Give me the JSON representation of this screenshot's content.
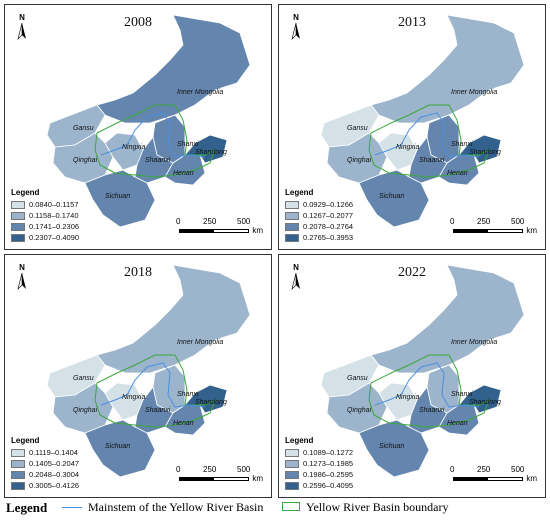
{
  "north_label": "N",
  "scale": {
    "ticks": [
      "0",
      "250",
      "500"
    ],
    "unit": "km"
  },
  "legend_title": "Legend",
  "colors": {
    "c1": "#d4e2e8",
    "c2": "#9cb4cc",
    "c3": "#6486ae",
    "c4": "#33618d",
    "river": "#4a90e2",
    "boundary": "#3aa83a"
  },
  "panels": [
    {
      "year": "2008",
      "legend": [
        "0.0840–0.1157",
        "0.1158–0.1740",
        "0.1741–0.2306",
        "0.2307–0.4090"
      ],
      "fill": {
        "nm": "c3",
        "gs": "c2",
        "qh": "c2",
        "nx": "c2",
        "sx": "c3",
        "sa": "c3",
        "hn": "c3",
        "sd": "c4",
        "sc": "c3"
      }
    },
    {
      "year": "2013",
      "legend": [
        "0.0929–0.1266",
        "0.1267–0.2077",
        "0.2078–0.2764",
        "0.2765–0.3953"
      ],
      "fill": {
        "nm": "c2",
        "gs": "c1",
        "qh": "c2",
        "nx": "c1",
        "sx": "c3",
        "sa": "c3",
        "hn": "c3",
        "sd": "c4",
        "sc": "c3"
      }
    },
    {
      "year": "2018",
      "legend": [
        "0.1119–0.1404",
        "0.1405–0.2047",
        "0.2048–0.3004",
        "0.3005–0.4126"
      ],
      "fill": {
        "nm": "c2",
        "gs": "c1",
        "qh": "c2",
        "nx": "c1",
        "sx": "c2",
        "sa": "c3",
        "hn": "c3",
        "sd": "c4",
        "sc": "c3"
      }
    },
    {
      "year": "2022",
      "legend": [
        "0.1089–0.1272",
        "0.1273–0.1985",
        "0.1986–0.2595",
        "0.2596–0.4095"
      ],
      "fill": {
        "nm": "c2",
        "gs": "c1",
        "qh": "c2",
        "nx": "c1",
        "sx": "c2",
        "sa": "c3",
        "hn": "c3",
        "sd": "c4",
        "sc": "c3"
      }
    }
  ],
  "provinces": {
    "nm": "Inner Mongolia",
    "gs": "Gansu",
    "qh": "Qinghai",
    "nx": "Ningxia",
    "sx": "Shanxi",
    "sa": "Shaanxi",
    "hn": "Henan",
    "sd": "Shandong",
    "sc": "Sichuan"
  },
  "bottom_legend": {
    "title": "Legend",
    "river_label": "Mainstem of the Yellow River Basin",
    "boundary_label": "Yellow River Basin boundary"
  }
}
